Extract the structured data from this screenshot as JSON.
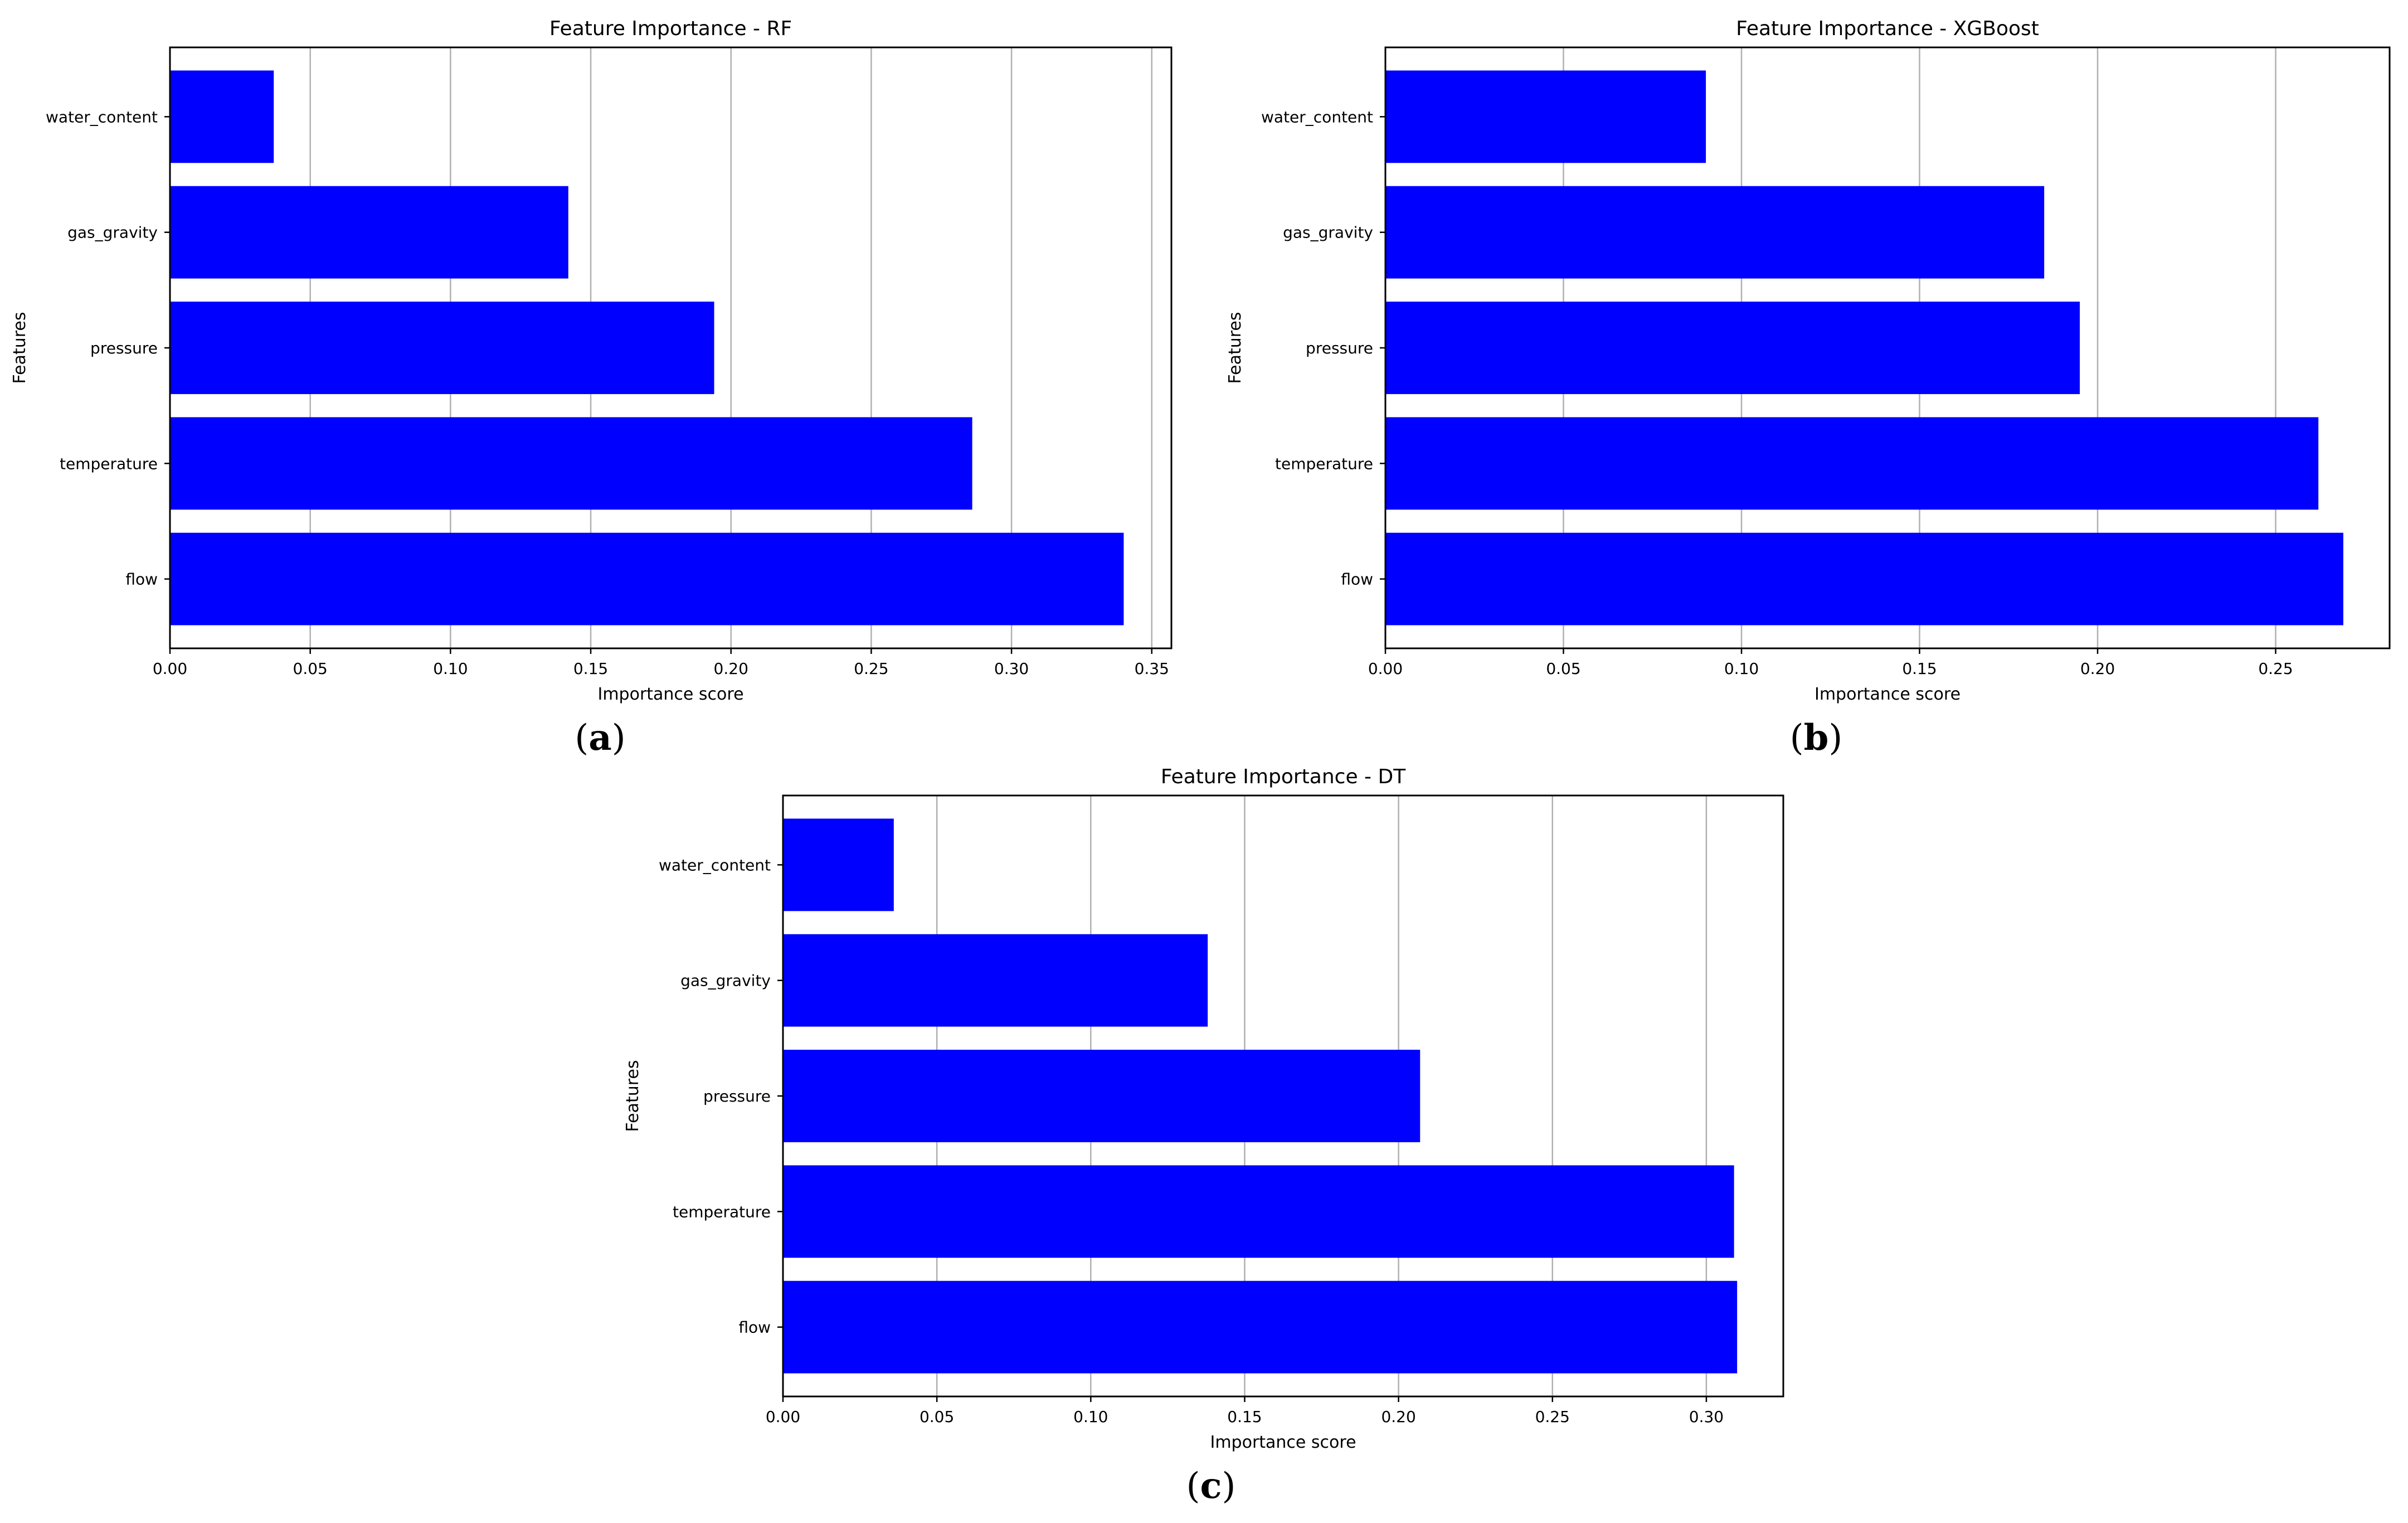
{
  "colors": {
    "bar": "#0000ff",
    "grid": "#b0b0b0",
    "axis": "#000000"
  },
  "chart_data": [
    {
      "type": "bar",
      "orientation": "horizontal",
      "panel": "a",
      "title": "Feature Importance - RF",
      "xlabel": "Importance score",
      "ylabel": "Features",
      "categories": [
        "water_content",
        "gas_gravity",
        "pressure",
        "temperature",
        "flow"
      ],
      "values": [
        0.037,
        0.142,
        0.194,
        0.286,
        0.34
      ],
      "xlim": [
        0,
        0.357
      ],
      "xticks": [
        0,
        0.05,
        0.1,
        0.15,
        0.2,
        0.25,
        0.3,
        0.35
      ],
      "xtick_labels": [
        "0.00",
        "0.05",
        "0.10",
        "0.15",
        "0.20",
        "0.25",
        "0.30",
        "0.35"
      ],
      "grid": "vertical",
      "caption_letter": "a"
    },
    {
      "type": "bar",
      "orientation": "horizontal",
      "panel": "b",
      "title": "Feature Importance - XGBoost",
      "xlabel": "Importance score",
      "ylabel": "Features",
      "categories": [
        "water_content",
        "gas_gravity",
        "pressure",
        "temperature",
        "flow"
      ],
      "values": [
        0.09,
        0.185,
        0.195,
        0.262,
        0.269
      ],
      "xlim": [
        0,
        0.282
      ],
      "xticks": [
        0,
        0.05,
        0.1,
        0.15,
        0.2,
        0.25
      ],
      "xtick_labels": [
        "0.00",
        "0.05",
        "0.10",
        "0.15",
        "0.20",
        "0.25"
      ],
      "grid": "vertical",
      "caption_letter": "b"
    },
    {
      "type": "bar",
      "orientation": "horizontal",
      "panel": "c",
      "title": "Feature Importance - DT",
      "xlabel": "Importance score",
      "ylabel": "Features",
      "categories": [
        "water_content",
        "gas_gravity",
        "pressure",
        "temperature",
        "flow"
      ],
      "values": [
        0.036,
        0.138,
        0.207,
        0.309,
        0.31
      ],
      "xlim": [
        0,
        0.325
      ],
      "xticks": [
        0,
        0.05,
        0.1,
        0.15,
        0.2,
        0.25,
        0.3
      ],
      "xtick_labels": [
        "0.00",
        "0.05",
        "0.10",
        "0.15",
        "0.20",
        "0.25",
        "0.30"
      ],
      "grid": "vertical",
      "caption_letter": "c"
    }
  ]
}
